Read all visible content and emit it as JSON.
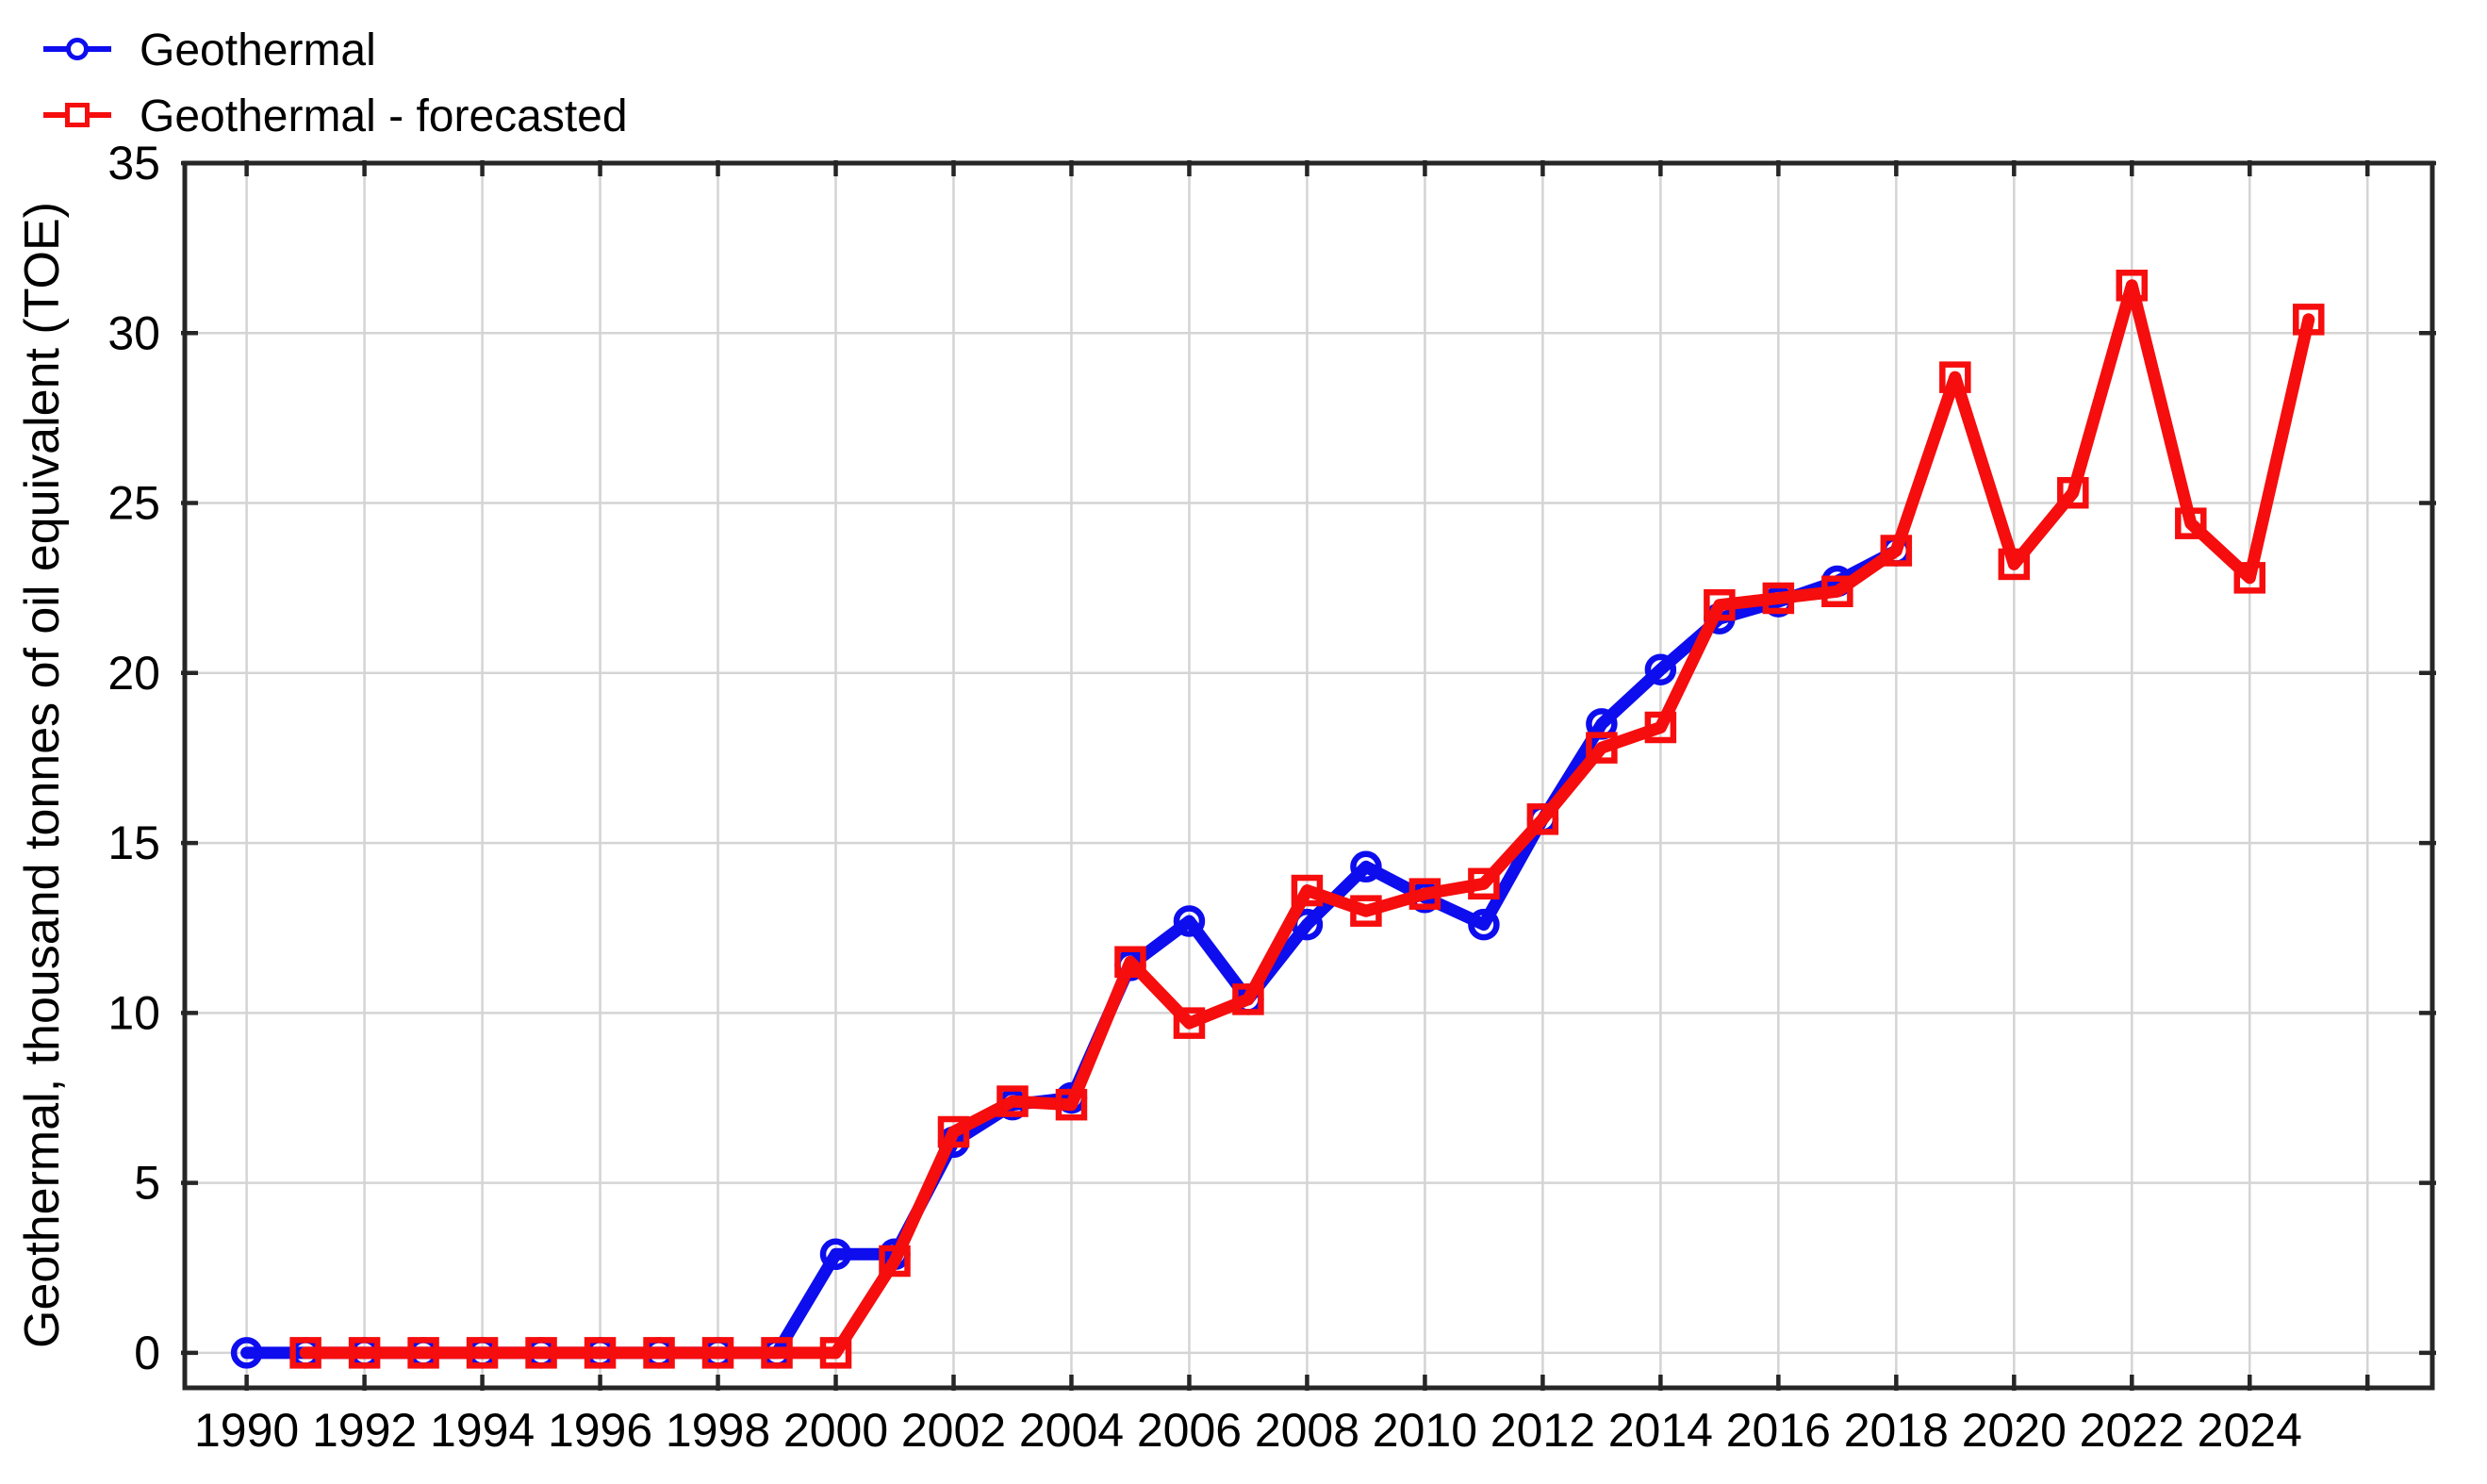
{
  "chart_data": {
    "type": "line",
    "title": "",
    "xlabel": "",
    "ylabel": "Geothermal, thousand tonnes of oil equivalent (TOE)",
    "x_tick_labels": [
      "1990",
      "1992",
      "1994",
      "1996",
      "1998",
      "2000",
      "2002",
      "2004",
      "2006",
      "2008",
      "2010",
      "2012",
      "2014",
      "2016",
      "2018",
      "2020",
      "2022",
      "2024"
    ],
    "x_gridline_years": [
      1990,
      1992,
      1994,
      1996,
      1998,
      2000,
      2002,
      2004,
      2006,
      2008,
      2010,
      2012,
      2014,
      2016,
      2018,
      2020,
      2022,
      2024,
      2026
    ],
    "y_ticks": [
      0,
      5,
      10,
      15,
      20,
      25,
      30,
      35
    ],
    "xlim": [
      1988.95,
      2027.1
    ],
    "ylim": [
      -1.03,
      35
    ],
    "grid": true,
    "legend_position": "top-left",
    "colors": {
      "background": "#ffffff",
      "grid": "#d4d4d4",
      "axis": "#262626",
      "text": "#000000"
    },
    "series": [
      {
        "name": "Geothermal",
        "color": "#0d0dee",
        "marker": "circle",
        "years": [
          1990,
          1991,
          1992,
          1993,
          1994,
          1995,
          1996,
          1997,
          1998,
          1999,
          2000,
          2001,
          2002,
          2003,
          2004,
          2005,
          2006,
          2007,
          2008,
          2009,
          2010,
          2011,
          2012,
          2013,
          2014,
          2015,
          2016,
          2017,
          2018
        ],
        "values": [
          0,
          0,
          0,
          0,
          0,
          0,
          0,
          0,
          0,
          0,
          2.9,
          2.9,
          6.2,
          7.3,
          7.5,
          11.4,
          12.7,
          10.4,
          12.6,
          14.3,
          13.4,
          12.6,
          15.7,
          18.5,
          20.1,
          21.6,
          22.1,
          22.7,
          23.6
        ]
      },
      {
        "name": "Geothermal - forecasted",
        "color": "#f60d0d",
        "marker": "square",
        "years": [
          1991,
          1992,
          1993,
          1994,
          1995,
          1996,
          1997,
          1998,
          1999,
          2000,
          2001,
          2002,
          2003,
          2004,
          2005,
          2006,
          2007,
          2008,
          2009,
          2010,
          2011,
          2012,
          2013,
          2014,
          2015,
          2016,
          2017,
          2018,
          2019,
          2020,
          2021,
          2022,
          2023,
          2024,
          2025
        ],
        "values": [
          0,
          0,
          0,
          0,
          0,
          0,
          0,
          0,
          0,
          0,
          2.7,
          6.5,
          7.4,
          7.3,
          11.5,
          9.7,
          10.4,
          13.6,
          13.0,
          13.5,
          13.8,
          15.7,
          17.8,
          18.4,
          22.0,
          22.2,
          22.4,
          23.6,
          28.7,
          23.2,
          25.3,
          31.4,
          24.4,
          22.8,
          30.4
        ]
      }
    ]
  }
}
